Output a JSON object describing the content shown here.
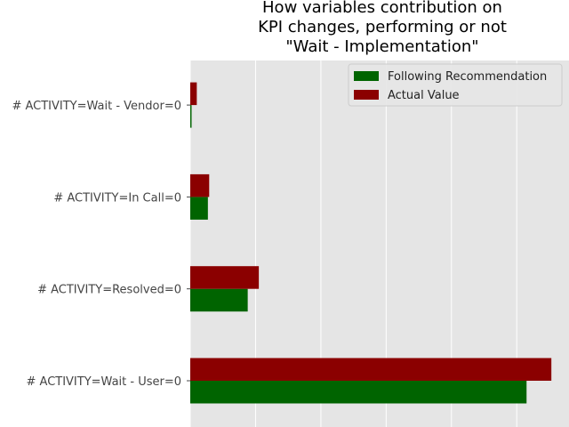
{
  "chart_data": {
    "type": "bar",
    "orientation": "horizontal",
    "title_lines": [
      "How variables contribution on",
      "KPI changes, performing or not",
      "\"Wait - Implementation\""
    ],
    "categories": [
      "# ACTIVITY=Wait - User=0",
      "# ACTIVITY=Resolved=0",
      "# ACTIVITY=In Call=0",
      "# ACTIVITY=Wait - Vendor=0"
    ],
    "series": [
      {
        "name": "Following Recommendation",
        "color": "#006400",
        "values": [
          0.515,
          0.088,
          0.027,
          0.002
        ]
      },
      {
        "name": "Actual Value",
        "color": "#8b0000",
        "values": [
          0.553,
          0.105,
          0.029,
          0.01
        ]
      }
    ],
    "xlim": [
      0,
      0.58
    ],
    "xticks": [
      0,
      0.1,
      0.2,
      0.3,
      0.4,
      0.5
    ],
    "grid": true,
    "legend_position": "top-right",
    "background": "#e5e5e5"
  }
}
